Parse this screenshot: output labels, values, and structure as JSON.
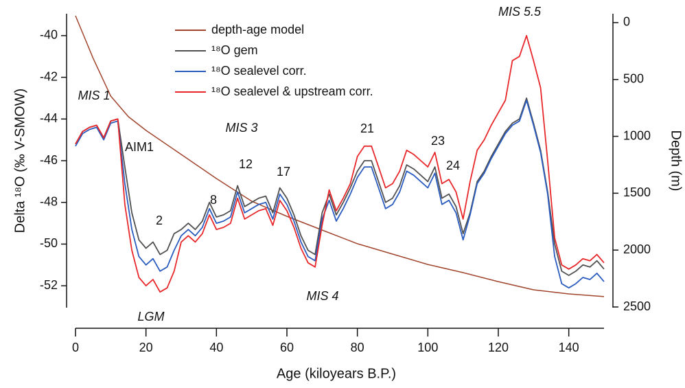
{
  "chart_data": {
    "type": "line",
    "xlabel": "Age (kiloyears B.P.)",
    "ylabel": "Delta ¹⁸O (‰ V-SMOW)",
    "y2label": "Depth (m)",
    "xlim": [
      0,
      150
    ],
    "xticks": [
      0,
      20,
      40,
      60,
      80,
      100,
      120,
      140
    ],
    "ylim": [
      -53.05,
      -38.95
    ],
    "yticks": [
      -52,
      -50,
      -48,
      -46,
      -44,
      -42,
      -40
    ],
    "y2lim": [
      2506,
      -78
    ],
    "y2ticks": [
      0,
      500,
      1000,
      1500,
      2000,
      2500
    ],
    "annotations": [
      "MIS 1",
      "AIM1",
      "2",
      "LGM",
      "8",
      "12",
      "MIS 3",
      "17",
      "MIS 4",
      "21",
      "23",
      "24",
      "MIS 5.5"
    ],
    "x": [
      0,
      2,
      4,
      6,
      8,
      10,
      12,
      14,
      16,
      18,
      20,
      22,
      24,
      26,
      28,
      30,
      32,
      34,
      36,
      38,
      40,
      42,
      44,
      46,
      48,
      50,
      52,
      54,
      56,
      58,
      60,
      62,
      64,
      66,
      68,
      70,
      72,
      74,
      76,
      78,
      80,
      82,
      84,
      86,
      88,
      90,
      92,
      94,
      96,
      98,
      100,
      102,
      104,
      106,
      108,
      110,
      112,
      114,
      116,
      118,
      120,
      122,
      124,
      126,
      128,
      130,
      132,
      134,
      136,
      138,
      140,
      142,
      144,
      146,
      148,
      150
    ],
    "series": [
      {
        "name": "depth-age model",
        "color": "#a0442c",
        "axis": "y2",
        "x": [
          0,
          5,
          10,
          15,
          20,
          30,
          40,
          50,
          60,
          70,
          80,
          90,
          100,
          110,
          120,
          130,
          140,
          150
        ],
        "values": [
          -60,
          314,
          646,
          827,
          948,
          1159,
          1371,
          1570,
          1703,
          1824,
          1944,
          2035,
          2126,
          2198,
          2277,
          2349,
          2385,
          2409
        ]
      },
      {
        "name": "¹⁸O gem",
        "color": "#505050",
        "values": [
          -45.2,
          -44.6,
          -44.4,
          -44.3,
          -44.9,
          -44.1,
          -44.0,
          -46.3,
          -48.5,
          -49.8,
          -50.2,
          -49.9,
          -50.5,
          -50.3,
          -49.5,
          -49.3,
          -49.0,
          -49.3,
          -48.9,
          -48.0,
          -48.7,
          -48.6,
          -48.4,
          -47.2,
          -48.2,
          -48.0,
          -47.8,
          -47.7,
          -48.5,
          -47.3,
          -47.8,
          -48.6,
          -49.6,
          -50.3,
          -50.5,
          -48.5,
          -47.6,
          -48.6,
          -48.0,
          -47.3,
          -46.5,
          -46.0,
          -46.0,
          -47.0,
          -48.0,
          -47.8,
          -47.2,
          -46.2,
          -46.4,
          -46.7,
          -47.0,
          -46.3,
          -47.8,
          -47.6,
          -48.2,
          -49.5,
          -48.5,
          -47.0,
          -46.5,
          -45.8,
          -45.2,
          -44.6,
          -44.2,
          -44.0,
          -43.0,
          -44.2,
          -45.5,
          -47.5,
          -50.0,
          -51.3,
          -51.5,
          -51.3,
          -51.0,
          -51.1,
          -50.8,
          -51.2
        ]
      },
      {
        "name": "¹⁸O sealevel corr.",
        "color": "#2a5bbf",
        "values": [
          -45.3,
          -44.7,
          -44.5,
          -44.4,
          -45.0,
          -44.2,
          -44.1,
          -47.1,
          -49.3,
          -50.6,
          -51.0,
          -50.7,
          -51.3,
          -51.1,
          -50.3,
          -49.6,
          -49.3,
          -49.6,
          -49.2,
          -48.3,
          -49.0,
          -48.9,
          -48.7,
          -47.5,
          -48.5,
          -48.3,
          -48.1,
          -48.0,
          -48.8,
          -47.6,
          -48.1,
          -48.9,
          -49.9,
          -50.6,
          -50.8,
          -48.8,
          -47.9,
          -48.9,
          -48.3,
          -47.6,
          -46.8,
          -46.3,
          -46.3,
          -47.3,
          -48.3,
          -48.1,
          -47.5,
          -46.5,
          -46.7,
          -47.0,
          -47.3,
          -46.6,
          -48.1,
          -47.9,
          -48.5,
          -49.8,
          -48.6,
          -47.1,
          -46.6,
          -45.9,
          -45.3,
          -44.7,
          -44.3,
          -44.1,
          -43.1,
          -44.3,
          -45.6,
          -47.6,
          -50.6,
          -51.9,
          -52.1,
          -51.9,
          -51.6,
          -51.7,
          -51.4,
          -51.8
        ]
      },
      {
        "name": "¹⁸O sealevel & upstream corr.",
        "color": "#e8272a",
        "values": [
          -45.2,
          -44.6,
          -44.4,
          -44.3,
          -44.9,
          -44.1,
          -44.0,
          -48.1,
          -50.3,
          -51.6,
          -52.0,
          -51.7,
          -52.3,
          -52.1,
          -51.3,
          -49.9,
          -49.6,
          -49.9,
          -49.5,
          -48.6,
          -49.3,
          -49.2,
          -49.0,
          -47.8,
          -48.8,
          -48.6,
          -48.4,
          -48.3,
          -49.1,
          -47.9,
          -48.4,
          -49.2,
          -50.2,
          -50.9,
          -51.1,
          -49.1,
          -47.4,
          -48.4,
          -47.8,
          -47.1,
          -45.8,
          -45.3,
          -45.3,
          -46.3,
          -47.3,
          -47.1,
          -46.5,
          -45.5,
          -45.7,
          -46.0,
          -46.3,
          -45.6,
          -47.1,
          -46.9,
          -47.5,
          -48.8,
          -47.0,
          -45.5,
          -45.0,
          -44.3,
          -43.7,
          -43.1,
          -41.2,
          -41.0,
          -40.0,
          -41.2,
          -42.5,
          -46.0,
          -49.7,
          -51.0,
          -51.2,
          -51.0,
          -50.7,
          -50.8,
          -50.5,
          -50.9
        ]
      }
    ]
  }
}
